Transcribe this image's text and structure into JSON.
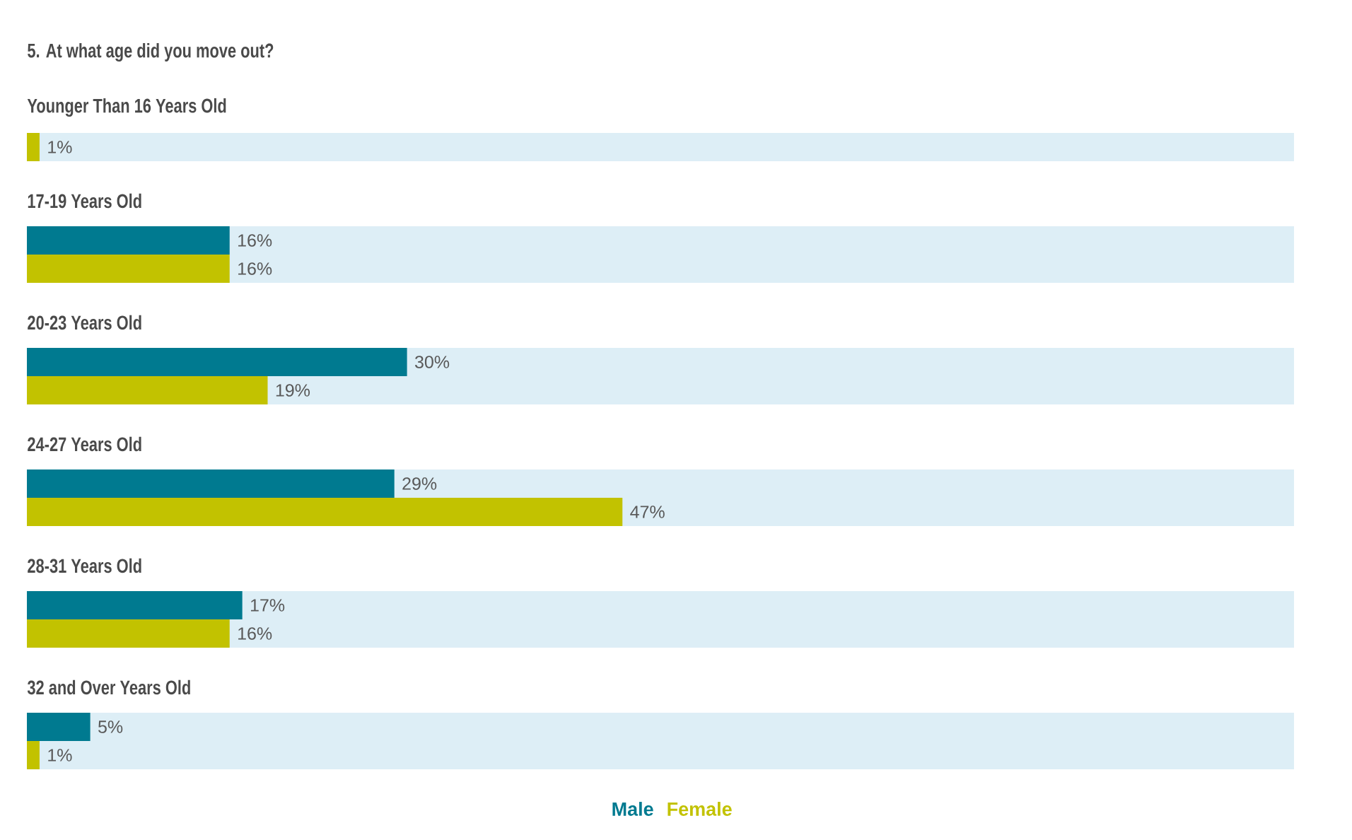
{
  "chart_data": {
    "type": "bar",
    "orientation": "horizontal",
    "title": "5. At what age did you move out?",
    "categories": [
      "Younger Than 16 Years Old",
      "17-19 Years Old",
      "20-23 Years Old",
      "24-27 Years Old",
      "28-31 Years Old",
      "32 and Over Years Old"
    ],
    "series": [
      {
        "name": "Male",
        "color": "#007a90",
        "values": [
          null,
          16,
          30,
          29,
          17,
          5
        ],
        "value_labels": [
          null,
          "16%",
          "30%",
          "29%",
          "17%",
          "5%"
        ]
      },
      {
        "name": "Female",
        "color": "#c2c200",
        "values": [
          1,
          16,
          19,
          47,
          16,
          1
        ],
        "value_labels": [
          "1%",
          "16%",
          "19%",
          "47%",
          "16%",
          "1%"
        ]
      }
    ],
    "bands": [
      {
        "axis": "y",
        "from": "Younger Than 16 Years Old",
        "to": "Younger Than 16 Years Old",
        "color": "#ddeef6"
      },
      {
        "axis": "y",
        "from": "17-19 Years Old",
        "to": "17-19 Years Old",
        "color": "#ddeef6"
      },
      {
        "axis": "y",
        "from": "20-23 Years Old",
        "to": "20-23 Years Old",
        "color": "#ddeef6"
      },
      {
        "axis": "y",
        "from": "24-27 Years Old",
        "to": "24-27 Years Old",
        "color": "#ddeef6"
      },
      {
        "axis": "y",
        "from": "28-31 Years Old",
        "to": "28-31 Years Old",
        "color": "#ddeef6"
      },
      {
        "axis": "y",
        "from": "32 and Over Years Old",
        "to": "32 and Over Years Old",
        "color": "#ddeef6"
      }
    ],
    "xlim": [
      0,
      100
    ],
    "tick_labels": false,
    "legend": "bottom"
  }
}
